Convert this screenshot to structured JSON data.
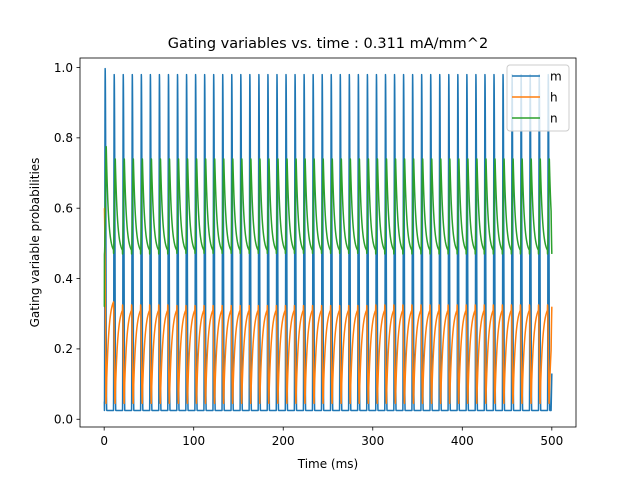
{
  "chart_data": {
    "type": "line",
    "title": "Gating variables vs. time : 0.311 mA/mm^2",
    "xlabel": "Time (ms)",
    "ylabel": "Gating variable probabilities",
    "xlim": [
      -27,
      527
    ],
    "ylim": [
      -0.022,
      1.027
    ],
    "xticks": [
      0,
      100,
      200,
      300,
      400,
      500
    ],
    "yticks": [
      0.0,
      0.2,
      0.4,
      0.6,
      0.8,
      1.0
    ],
    "xtick_labels": [
      "0",
      "100",
      "200",
      "300",
      "400",
      "500"
    ],
    "ytick_labels": [
      "0.0",
      "0.2",
      "0.4",
      "0.6",
      "0.8",
      "1.0"
    ],
    "legend_position": "top-right",
    "grid": false,
    "spike_period_ms": 10.1,
    "first_spike_ms": 0.3,
    "t_end_ms": 500,
    "series": [
      {
        "name": "m",
        "color": "#1f77b4",
        "initial": 0.05,
        "first_peak": 0.997,
        "peak": 0.98,
        "trough": 0.025,
        "end_value": 0.13
      },
      {
        "name": "h",
        "color": "#ff7f0e",
        "initial": 0.6,
        "first_peak": 0.35,
        "peak": 0.325,
        "trough": 0.045,
        "end_value": 0.32
      },
      {
        "name": "n",
        "color": "#2ca02c",
        "initial": 0.32,
        "first_peak": 0.775,
        "peak": 0.74,
        "trough": 0.47,
        "end_value": 0.47
      }
    ]
  }
}
